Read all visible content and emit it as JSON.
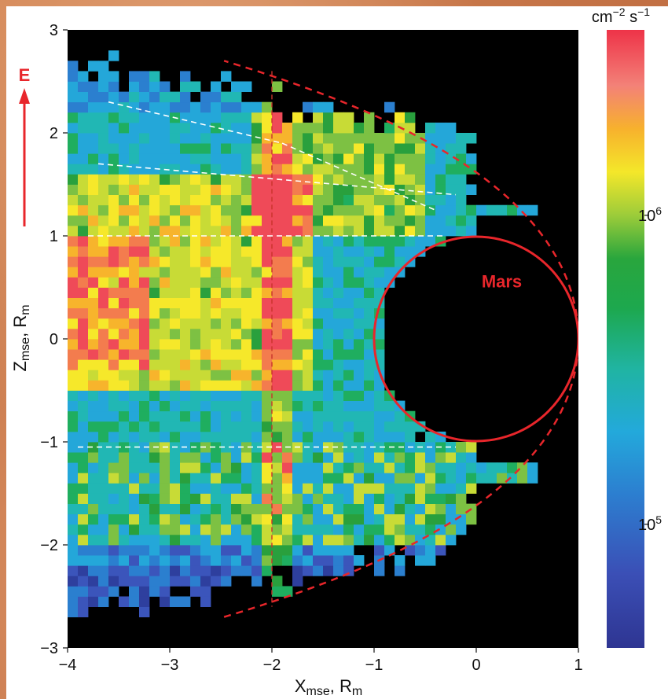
{
  "chart_data": {
    "type": "heatmap",
    "xlabel": {
      "base": "X",
      "sub": "mse",
      "rest": ", R",
      "sub2": "m"
    },
    "ylabel": {
      "base": "Z",
      "sub": "mse",
      "rest": ", R",
      "sub2": "m"
    },
    "xlim": [
      -4,
      1
    ],
    "ylim": [
      -3,
      3
    ],
    "xticks": [
      -4,
      -3,
      -2,
      -1,
      0,
      1
    ],
    "yticks": [
      -3,
      -2,
      -1,
      0,
      1,
      2,
      3
    ],
    "colorbar": {
      "unit_base1": "cm",
      "unit_sup1": "−2",
      "unit_base2": " s",
      "unit_sup2": "−1",
      "scale": "log",
      "ticks": [
        {
          "value": 1000000,
          "base": "10",
          "exp": "6"
        },
        {
          "value": 100000,
          "base": "10",
          "exp": "5"
        }
      ]
    },
    "annotations": {
      "planet_label": "Mars",
      "field_label": "E"
    },
    "planet": {
      "center": [
        0,
        0
      ],
      "radius": 1
    },
    "colors": {
      "planet": "#e8262b",
      "bowshock": "#e8262b",
      "background": "#000000"
    },
    "scale_levels": [
      "#2e3f9e",
      "#3b55bb",
      "#2b7fcf",
      "#24a7d9",
      "#21b7b4",
      "#1fae5f",
      "#29a03d",
      "#7dc143",
      "#c8db36",
      "#f6e82a",
      "#f7b42c",
      "#f37c4e",
      "#ef4a58"
    ],
    "description_note": ""
  }
}
